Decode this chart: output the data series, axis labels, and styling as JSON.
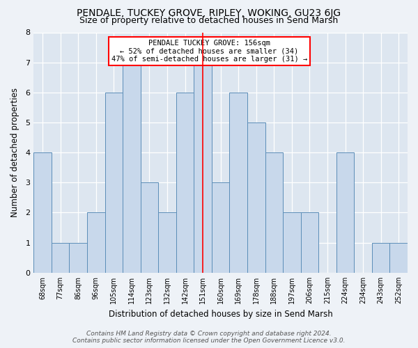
{
  "title": "PENDALE, TUCKEY GROVE, RIPLEY, WOKING, GU23 6JG",
  "subtitle": "Size of property relative to detached houses in Send Marsh",
  "xlabel": "Distribution of detached houses by size in Send Marsh",
  "ylabel": "Number of detached properties",
  "categories": [
    "68sqm",
    "77sqm",
    "86sqm",
    "96sqm",
    "105sqm",
    "114sqm",
    "123sqm",
    "132sqm",
    "142sqm",
    "151sqm",
    "160sqm",
    "169sqm",
    "178sqm",
    "188sqm",
    "197sqm",
    "206sqm",
    "215sqm",
    "224sqm",
    "234sqm",
    "243sqm",
    "252sqm"
  ],
  "values": [
    4,
    1,
    1,
    2,
    6,
    7,
    3,
    2,
    6,
    7,
    3,
    6,
    5,
    4,
    2,
    2,
    0,
    4,
    0,
    1,
    1
  ],
  "bar_color": "#c8d8eb",
  "bar_edge_color": "#5b8db8",
  "highlight_index": 9,
  "annotation_title": "PENDALE TUCKEY GROVE: 156sqm",
  "annotation_line1": "← 52% of detached houses are smaller (34)",
  "annotation_line2": "47% of semi-detached houses are larger (31) →",
  "ylim": [
    0,
    8
  ],
  "yticks": [
    0,
    1,
    2,
    3,
    4,
    5,
    6,
    7,
    8
  ],
  "footer_line1": "Contains HM Land Registry data © Crown copyright and database right 2024.",
  "footer_line2": "Contains public sector information licensed under the Open Government Licence v3.0.",
  "bg_color": "#eef2f7",
  "plot_bg_color": "#dde6f0",
  "grid_color": "#ffffff",
  "title_fontsize": 10,
  "subtitle_fontsize": 9,
  "annot_fontsize": 7.5,
  "tick_fontsize": 7,
  "label_fontsize": 8.5,
  "footer_fontsize": 6.5
}
